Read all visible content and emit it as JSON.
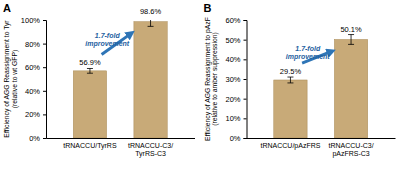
{
  "chart_data": [
    {
      "type": "bar",
      "title": "A",
      "y_label": "Efficiency of AGG Reassignment to Tyr (relative to wt GFP)",
      "categories": [
        "tRNACCU/TyrRS",
        "tRNACCU-C3/TyrRS-C3"
      ],
      "values": [
        56.9,
        98.6
      ],
      "errors": [
        2,
        4
      ],
      "value_labels": [
        "56.9%",
        "98.6%"
      ],
      "data_labels": true,
      "color": "#c8aa78",
      "annotation": "1.7-fold improvement",
      "ylim": [
        0,
        100
      ],
      "yticks": [
        {
          "value": 0,
          "label": "0%"
        },
        {
          "value": 20,
          "label": "20%"
        },
        {
          "value": 40,
          "label": "40%"
        },
        {
          "value": 60,
          "label": "60%"
        },
        {
          "value": 80,
          "label": "80%"
        },
        {
          "value": 100,
          "label": "100%"
        }
      ]
    },
    {
      "type": "bar",
      "title": "B",
      "y_label": "Efficiency of AGG Reassignment to pAzF (relative to amber suppression)",
      "categories": [
        "tRNACCU/pAzFRS",
        "tRNACCU-C3/pAzFRS-C3"
      ],
      "values": [
        29.5,
        50.1
      ],
      "errors": [
        1.5,
        2.5
      ],
      "value_labels": [
        "29.5%",
        "50.1%"
      ],
      "data_labels": true,
      "color": "#c8aa78",
      "annotation": "1.7-fold improvement",
      "ylim": [
        0,
        60
      ],
      "yticks": [
        {
          "value": 0,
          "label": "0%"
        },
        {
          "value": 10,
          "label": "10%"
        },
        {
          "value": 20,
          "label": "20%"
        },
        {
          "value": 30,
          "label": "30%"
        },
        {
          "value": 40,
          "label": "40%"
        },
        {
          "value": 50,
          "label": "50%"
        },
        {
          "value": 60,
          "label": "60%"
        }
      ]
    }
  ]
}
